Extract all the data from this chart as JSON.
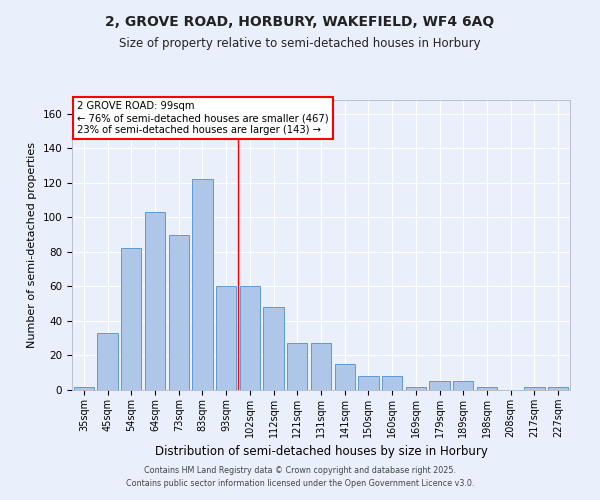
{
  "title1": "2, GROVE ROAD, HORBURY, WAKEFIELD, WF4 6AQ",
  "title2": "Size of property relative to semi-detached houses in Horbury",
  "xlabel": "Distribution of semi-detached houses by size in Horbury",
  "ylabel": "Number of semi-detached properties",
  "categories": [
    "35sqm",
    "45sqm",
    "54sqm",
    "64sqm",
    "73sqm",
    "83sqm",
    "93sqm",
    "102sqm",
    "112sqm",
    "121sqm",
    "131sqm",
    "141sqm",
    "150sqm",
    "160sqm",
    "169sqm",
    "179sqm",
    "189sqm",
    "198sqm",
    "208sqm",
    "217sqm",
    "227sqm"
  ],
  "values": [
    2,
    33,
    82,
    103,
    90,
    122,
    60,
    60,
    48,
    27,
    27,
    15,
    8,
    8,
    2,
    5,
    5,
    2,
    0,
    2,
    2
  ],
  "bar_color": "#aec6e8",
  "bar_edge_color": "#5b9bd5",
  "bg_color": "#eaf0fb",
  "grid_color": "#ffffff",
  "red_line_index": 7,
  "annotation_title": "2 GROVE ROAD: 99sqm",
  "annotation_line1": "← 76% of semi-detached houses are smaller (467)",
  "annotation_line2": "23% of semi-detached houses are larger (143) →",
  "ylim": [
    0,
    168
  ],
  "yticks": [
    0,
    20,
    40,
    60,
    80,
    100,
    120,
    140,
    160
  ],
  "footer1": "Contains HM Land Registry data © Crown copyright and database right 2025.",
  "footer2": "Contains public sector information licensed under the Open Government Licence v3.0."
}
